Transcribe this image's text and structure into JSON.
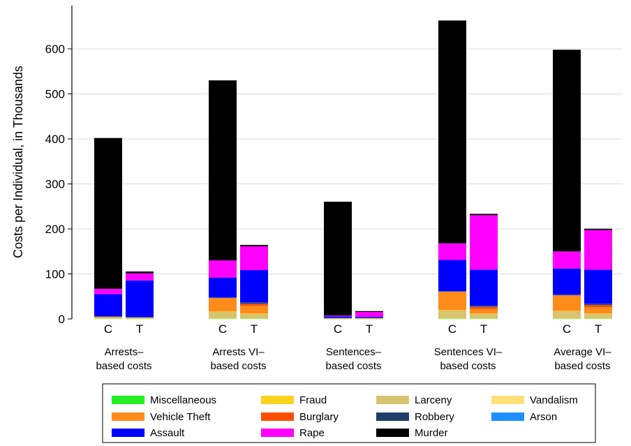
{
  "chart_data": {
    "type": "bar",
    "stacked": true,
    "ylabel": "Costs per Individual, in Thousands",
    "ylim": [
      0,
      700
    ],
    "yticks": [
      0,
      100,
      200,
      300,
      400,
      500,
      600
    ],
    "grid": true,
    "legend_position": "bottom",
    "groups": [
      {
        "label_lines": [
          "Arrests–",
          "based costs"
        ],
        "bars": [
          "C",
          "T"
        ]
      },
      {
        "label_lines": [
          "Arrests VI–",
          "based costs"
        ],
        "bars": [
          "C",
          "T"
        ]
      },
      {
        "label_lines": [
          "Sentences–",
          "based costs"
        ],
        "bars": [
          "C",
          "T"
        ]
      },
      {
        "label_lines": [
          "Sentences VI–",
          "based costs"
        ],
        "bars": [
          "C",
          "T"
        ]
      },
      {
        "label_lines": [
          "Average VI–",
          "based costs"
        ],
        "bars": [
          "C",
          "T"
        ]
      }
    ],
    "series_order": [
      "Miscellaneous",
      "Fraud",
      "Larceny",
      "Vandalism",
      "Vehicle Theft",
      "Burglary",
      "Robbery",
      "Arson",
      "Assault",
      "Rape",
      "Murder"
    ],
    "stack_order": [
      "Miscellaneous",
      "Vandalism",
      "Larceny",
      "Fraud",
      "Vehicle Theft",
      "Burglary",
      "Robbery",
      "Arson",
      "Assault",
      "Rape",
      "Murder"
    ],
    "series": [
      {
        "name": "Miscellaneous",
        "color": "#22ee22",
        "values": [
          0.5,
          0.5,
          0.5,
          0.5,
          0.2,
          0.2,
          0.5,
          0.5,
          0.5,
          0.5
        ]
      },
      {
        "name": "Fraud",
        "color": "#ffd21f",
        "values": [
          0.5,
          0.5,
          0.5,
          0.5,
          0.2,
          0.2,
          0.5,
          0.5,
          0.5,
          0.5
        ]
      },
      {
        "name": "Larceny",
        "color": "#d8c36e",
        "values": [
          2,
          1,
          15,
          10,
          1,
          1,
          18,
          10,
          16,
          10
        ]
      },
      {
        "name": "Vandalism",
        "color": "#ffe17a",
        "values": [
          0.5,
          0.5,
          1,
          1,
          0.2,
          0.2,
          1,
          1,
          1,
          1
        ]
      },
      {
        "name": "Vehicle Theft",
        "color": "#ff8c1a",
        "values": [
          1,
          0.5,
          29,
          17,
          0.5,
          0.5,
          40,
          10,
          34,
          14
        ]
      },
      {
        "name": "Burglary",
        "color": "#ff4d00",
        "values": [
          0.5,
          0.5,
          1,
          5,
          0.2,
          0.2,
          1,
          5,
          1,
          5
        ]
      },
      {
        "name": "Robbery",
        "color": "#1f3f6b",
        "values": [
          0.5,
          0.5,
          0.5,
          2,
          0.1,
          0.1,
          0.5,
          2,
          0.5,
          2
        ]
      },
      {
        "name": "Arson",
        "color": "#1f8fff",
        "values": [
          0.5,
          0.5,
          0.5,
          0.5,
          0.1,
          0.1,
          0.5,
          0.5,
          0.5,
          0.5
        ]
      },
      {
        "name": "Assault",
        "color": "#0000ff",
        "values": [
          49,
          81,
          44,
          72,
          3,
          2,
          69,
          80,
          58,
          76
        ]
      },
      {
        "name": "Rape",
        "color": "#ff00ff",
        "values": [
          12,
          16,
          38,
          53,
          2,
          11,
          37,
          121,
          38,
          88
        ]
      },
      {
        "name": "Murder",
        "color": "#000000",
        "values": [
          335,
          4,
          400,
          3,
          253,
          2,
          495,
          3,
          448,
          3
        ]
      }
    ]
  }
}
